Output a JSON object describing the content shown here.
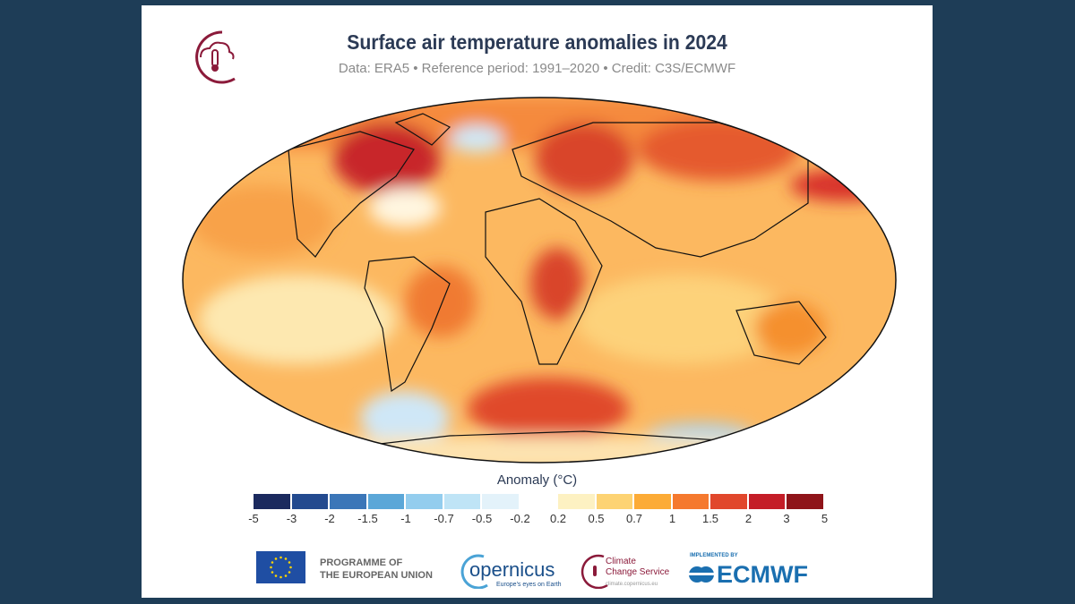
{
  "header": {
    "title": "Surface air temperature anomalies in 2024",
    "subtitle": "Data: ERA5 • Reference period: 1991–2020 • Credit: C3S/ECMWF"
  },
  "map": {
    "type": "global temperature anomaly map",
    "projection": "Robinson",
    "dominant": "warm anomalies (orange/red)"
  },
  "legend": {
    "title": "Anomaly (°C)",
    "ticks": [
      "-5",
      "-3",
      "-2",
      "-1.5",
      "-1",
      "-0.7",
      "-0.5",
      "-0.2",
      "0.2",
      "0.5",
      "0.7",
      "1",
      "1.5",
      "2",
      "3",
      "5"
    ],
    "colors": [
      "#1b2a5e",
      "#234a8f",
      "#3b76b8",
      "#5ba7d8",
      "#93cdee",
      "#bfe4f6",
      "#e3f2fa",
      "#ffffff",
      "#fdf1c2",
      "#fdd373",
      "#fcab36",
      "#f5792e",
      "#e1472c",
      "#c41d27",
      "#8f1419"
    ]
  },
  "footer": {
    "eu_line1": "PROGRAMME OF",
    "eu_line2": "THE EUROPEAN UNION",
    "copernicus": "opernicus",
    "copernicus_tag": "Europe's eyes on Earth",
    "c3s_line1": "Climate",
    "c3s_line2": "Change Service",
    "c3s_url": "climate.copernicus.eu",
    "ecmwf_pre": "IMPLEMENTED BY",
    "ecmwf": "ECMWF"
  }
}
